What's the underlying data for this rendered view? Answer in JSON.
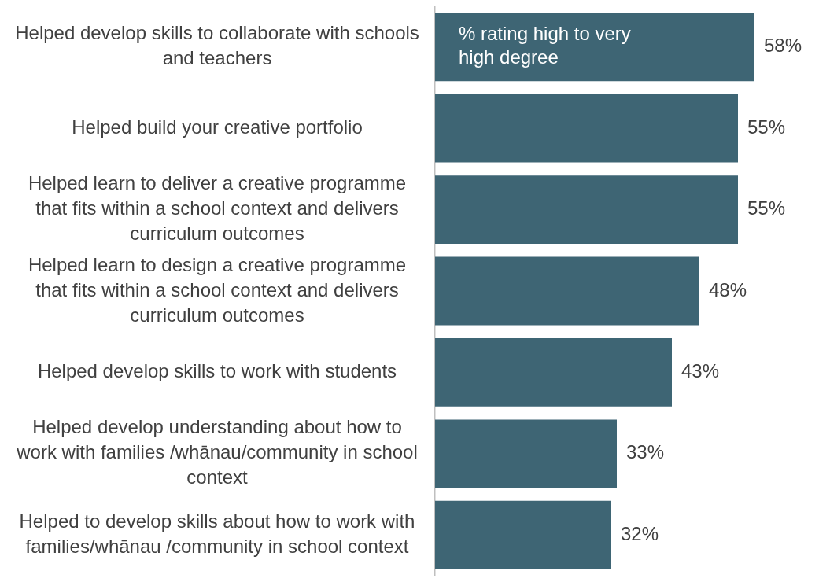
{
  "chart_data": {
    "type": "bar",
    "orientation": "horizontal",
    "categories": [
      "Helped develop skills to collaborate with schools and teachers",
      "Helped build your creative portfolio",
      "Helped learn to deliver a creative programme that fits within a school context and delivers curriculum outcomes",
      "Helped learn to design a creative programme that fits within a school context and delivers curriculum outcomes",
      "Helped develop skills to work with students",
      "Helped develop understanding about how to work with families /whānau/community in school context",
      "Helped to develop skills about how to work with families/whānau /community in school context"
    ],
    "series": [
      {
        "name": "% rating high to very high degree",
        "color": "#3e6574",
        "values": [
          58,
          55,
          55,
          48,
          43,
          33,
          32
        ],
        "value_labels": [
          "58%",
          "55%",
          "55%",
          "48%",
          "43%",
          "33%",
          "32%"
        ]
      }
    ],
    "legend": false,
    "grid": false
  }
}
